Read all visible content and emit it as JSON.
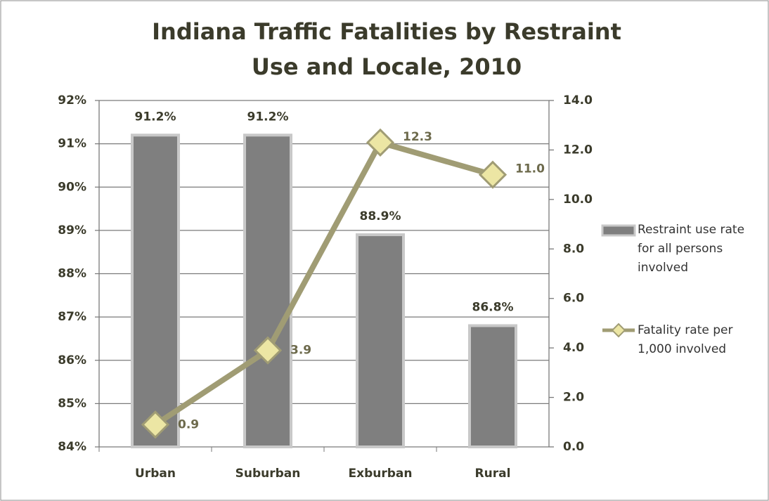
{
  "chart_data": {
    "type": "bar",
    "title": "Indiana Traffic Fatalities by Restraint Use and Locale, 2010",
    "categories": [
      "Urban",
      "Suburban",
      "Exburban",
      "Rural"
    ],
    "series": [
      {
        "name": "Restraint use rate for all persons involved",
        "type": "bar",
        "color": "#7f7f7f",
        "values": [
          91.2,
          91.2,
          88.9,
          86.8
        ],
        "value_labels": [
          "91.2%",
          "91.2%",
          "88.9%",
          "86.8%"
        ]
      },
      {
        "name": "Fatality rate per 1,000 involved",
        "type": "line",
        "axis": "y2",
        "color": "#a09c74",
        "values": [
          0.9,
          3.9,
          12.3,
          11.0
        ],
        "value_labels": [
          "0.9",
          "3.9",
          "12.3",
          "11.0"
        ]
      }
    ],
    "ylim": [
      84,
      92
    ],
    "yticks": [
      {
        "value": 84,
        "label": "84%"
      },
      {
        "value": 85,
        "label": "85%"
      },
      {
        "value": 86,
        "label": "86%"
      },
      {
        "value": 87,
        "label": "87%"
      },
      {
        "value": 88,
        "label": "88%"
      },
      {
        "value": 89,
        "label": "89%"
      },
      {
        "value": 90,
        "label": "90%"
      },
      {
        "value": 91,
        "label": "91%"
      },
      {
        "value": 92,
        "label": "92%"
      }
    ],
    "y2lim": [
      0,
      14
    ],
    "y2ticks": [
      {
        "value": 0,
        "label": "0.0"
      },
      {
        "value": 2,
        "label": "2.0"
      },
      {
        "value": 4,
        "label": "4.0"
      },
      {
        "value": 6,
        "label": "6.0"
      },
      {
        "value": 8,
        "label": "8.0"
      },
      {
        "value": 10,
        "label": "10.0"
      },
      {
        "value": 12,
        "label": "12.0"
      },
      {
        "value": 14,
        "label": "14.0"
      }
    ],
    "grid": true,
    "legend": "right"
  }
}
